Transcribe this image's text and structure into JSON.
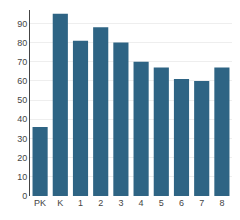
{
  "chart_data": {
    "type": "bar",
    "categories": [
      "PK",
      "K",
      "1",
      "2",
      "3",
      "4",
      "5",
      "6",
      "7",
      "8"
    ],
    "values": [
      36,
      95,
      81,
      88,
      80,
      70,
      67,
      61,
      60,
      67
    ],
    "color": "#2e6484",
    "ylim": [
      0,
      97
    ],
    "yticks": [
      0,
      10,
      20,
      30,
      40,
      50,
      60,
      70,
      80,
      90
    ],
    "grid": true
  }
}
